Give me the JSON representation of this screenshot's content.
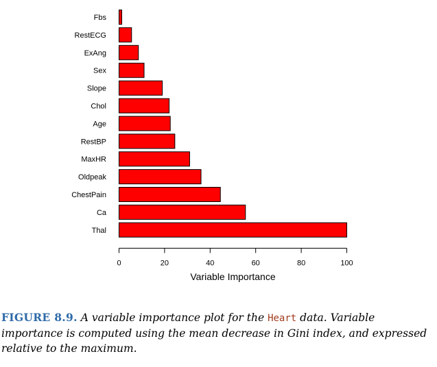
{
  "chart_data": {
    "type": "bar",
    "orientation": "horizontal",
    "categories": [
      "Fbs",
      "RestECG",
      "ExAng",
      "Sex",
      "Slope",
      "Chol",
      "Age",
      "RestBP",
      "MaxHR",
      "Oldpeak",
      "ChestPain",
      "Ca",
      "Thal"
    ],
    "values": [
      1.2,
      5.5,
      8.5,
      11.0,
      19.0,
      22.0,
      22.5,
      24.5,
      31.0,
      36.0,
      44.5,
      55.5,
      100.0
    ],
    "xlabel": "Variable Importance",
    "ylabel": "",
    "xlim": [
      0,
      100
    ],
    "xticks": [
      "0",
      "20",
      "40",
      "60",
      "80",
      "100"
    ],
    "grid": false,
    "colors": {
      "bar_fill": "#ff0000",
      "bar_stroke": "#000000"
    }
  },
  "caption": {
    "label": "FIGURE 8.9.",
    "text_before": "A variable importance plot for the",
    "code": "Heart",
    "text_after": "data. Variable importance is computed using the mean decrease in Gini index, and expressed relative to the maximum."
  }
}
